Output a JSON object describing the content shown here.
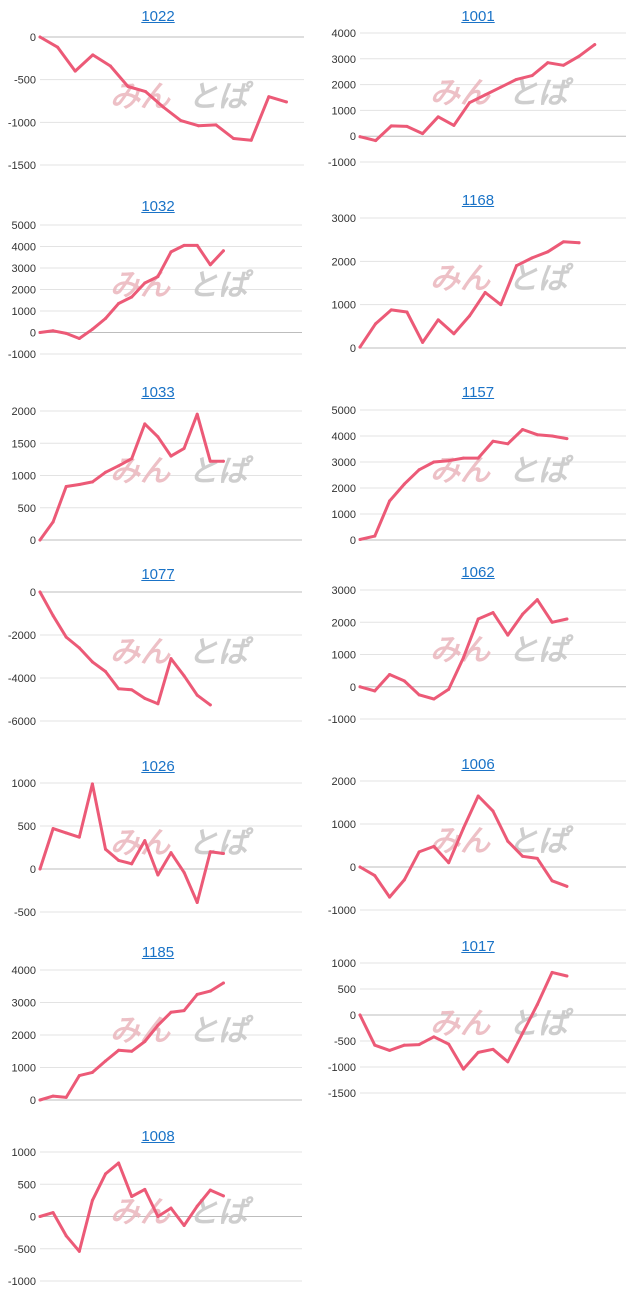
{
  "colors": {
    "line": "#ec5a77",
    "grid": "#e3e3e3",
    "title": "#1a73c7",
    "watermark_pink": "#eab6bd",
    "watermark_gray": "#c9c9c9"
  },
  "watermark": {
    "left": "みん",
    "right": "とぱ"
  },
  "chart_data": [
    {
      "type": "line",
      "title": "1022",
      "ylim": [
        -1500,
        0
      ],
      "yticks": [
        0,
        -500,
        -1000,
        -1500
      ],
      "x": [
        0,
        1,
        2,
        3,
        4,
        5,
        6,
        7,
        8,
        9,
        10,
        11,
        12,
        13,
        14,
        15
      ],
      "values": [
        0,
        -120,
        -400,
        -210,
        -340,
        -580,
        -640,
        -820,
        -980,
        -1040,
        -1030,
        -1190,
        -1210,
        -700,
        -760,
        null
      ]
    },
    {
      "type": "line",
      "title": "1001",
      "ylim": [
        -1000,
        4000
      ],
      "yticks": [
        4000,
        3000,
        2000,
        1000,
        0,
        -1000
      ],
      "x": [
        0,
        1,
        2,
        3,
        4,
        5,
        6,
        7,
        8,
        9,
        10,
        11,
        12,
        13,
        14,
        15,
        16,
        17
      ],
      "values": [
        -20,
        -170,
        400,
        380,
        100,
        750,
        420,
        1300,
        1600,
        1900,
        2200,
        2350,
        2850,
        2750,
        3100,
        3550,
        null,
        null
      ]
    },
    {
      "type": "line",
      "title": "1032",
      "ylim": [
        -1000,
        5000
      ],
      "yticks": [
        5000,
        4000,
        3000,
        2000,
        1000,
        0,
        -1000
      ],
      "x": [
        0,
        1,
        2,
        3,
        4,
        5,
        6,
        7,
        8,
        9,
        10,
        11,
        12,
        13,
        14,
        15,
        16,
        17,
        18,
        19,
        20
      ],
      "values": [
        0,
        80,
        -40,
        -280,
        150,
        650,
        1350,
        1650,
        2300,
        2600,
        3750,
        4050,
        4050,
        3150,
        3800,
        null,
        null,
        null,
        null,
        null,
        null
      ]
    },
    {
      "type": "line",
      "title": "1168",
      "ylim": [
        0,
        3000
      ],
      "yticks": [
        3000,
        2000,
        1000,
        0
      ],
      "x": [
        0,
        1,
        2,
        3,
        4,
        5,
        6,
        7,
        8,
        9,
        10,
        11,
        12,
        13,
        14,
        15,
        16,
        17
      ],
      "values": [
        20,
        560,
        880,
        830,
        130,
        650,
        330,
        740,
        1280,
        1000,
        1900,
        2080,
        2220,
        2450,
        2430,
        null,
        null,
        null
      ]
    },
    {
      "type": "line",
      "title": "1033",
      "ylim": [
        0,
        2000
      ],
      "yticks": [
        2000,
        1500,
        1000,
        500,
        0
      ],
      "x": [
        0,
        1,
        2,
        3,
        4,
        5,
        6,
        7,
        8,
        9,
        10,
        11,
        12,
        13,
        14,
        15,
        16,
        17,
        18,
        19,
        20
      ],
      "values": [
        0,
        280,
        830,
        860,
        900,
        1050,
        1150,
        1260,
        1800,
        1600,
        1300,
        1420,
        1950,
        1220,
        1220,
        null,
        null,
        null,
        null,
        null,
        null
      ]
    },
    {
      "type": "line",
      "title": "1157",
      "ylim": [
        0,
        5000
      ],
      "yticks": [
        5000,
        4000,
        3000,
        2000,
        1000,
        0
      ],
      "x": [
        0,
        1,
        2,
        3,
        4,
        5,
        6,
        7,
        8,
        9,
        10,
        11,
        12,
        13,
        14,
        15,
        16,
        17,
        18
      ],
      "values": [
        20,
        150,
        1500,
        2150,
        2700,
        3000,
        3050,
        3150,
        3150,
        3800,
        3700,
        4250,
        4050,
        4000,
        3900,
        null,
        null,
        null,
        null
      ]
    },
    {
      "type": "line",
      "title": "1077",
      "ylim": [
        -6000,
        0
      ],
      "yticks": [
        0,
        -2000,
        -4000,
        -6000
      ],
      "x": [
        0,
        1,
        2,
        3,
        4,
        5,
        6,
        7,
        8,
        9,
        10,
        11,
        12,
        13,
        14,
        15,
        16,
        17,
        18,
        19,
        20
      ],
      "values": [
        0,
        -1100,
        -2100,
        -2600,
        -3250,
        -3700,
        -4500,
        -4550,
        -4950,
        -5200,
        -3100,
        -3900,
        -4800,
        -5250,
        null,
        null,
        null,
        null,
        null,
        null,
        null
      ]
    },
    {
      "type": "line",
      "title": "1062",
      "ylim": [
        -1000,
        3000
      ],
      "yticks": [
        3000,
        2000,
        1000,
        0,
        -1000
      ],
      "x": [
        0,
        1,
        2,
        3,
        4,
        5,
        6,
        7,
        8,
        9,
        10,
        11,
        12,
        13,
        14,
        15,
        16,
        17,
        18
      ],
      "values": [
        0,
        -130,
        380,
        180,
        -250,
        -380,
        -80,
        900,
        2100,
        2300,
        1600,
        2250,
        2700,
        2000,
        2100,
        null,
        null,
        null,
        null
      ]
    },
    {
      "type": "line",
      "title": "1026",
      "ylim": [
        -500,
        1000
      ],
      "yticks": [
        1000,
        500,
        0,
        -500
      ],
      "x": [
        0,
        1,
        2,
        3,
        4,
        5,
        6,
        7,
        8,
        9,
        10,
        11,
        12,
        13,
        14,
        15,
        16,
        17,
        18,
        19,
        20
      ],
      "values": [
        0,
        470,
        420,
        370,
        990,
        230,
        100,
        60,
        330,
        -70,
        190,
        -40,
        -390,
        200,
        180,
        null,
        null,
        null,
        null,
        null,
        null
      ]
    },
    {
      "type": "line",
      "title": "1006",
      "ylim": [
        -1000,
        2000
      ],
      "yticks": [
        2000,
        1000,
        0,
        -1000
      ],
      "x": [
        0,
        1,
        2,
        3,
        4,
        5,
        6,
        7,
        8,
        9,
        10,
        11,
        12,
        13,
        14,
        15,
        16,
        17,
        18
      ],
      "values": [
        0,
        -200,
        -700,
        -300,
        350,
        480,
        100,
        900,
        1650,
        1300,
        600,
        250,
        200,
        -320,
        -450,
        null,
        null,
        null,
        null
      ]
    },
    {
      "type": "line",
      "title": "1185",
      "ylim": [
        0,
        4000
      ],
      "yticks": [
        4000,
        3000,
        2000,
        1000,
        0
      ],
      "x": [
        0,
        1,
        2,
        3,
        4,
        5,
        6,
        7,
        8,
        9,
        10,
        11,
        12,
        13,
        14,
        15,
        16,
        17,
        18,
        19,
        20
      ],
      "values": [
        0,
        120,
        80,
        750,
        850,
        1200,
        1530,
        1500,
        1800,
        2300,
        2700,
        2750,
        3250,
        3350,
        3600,
        null,
        null,
        null,
        null,
        null,
        null
      ]
    },
    {
      "type": "line",
      "title": "1017",
      "ylim": [
        -1500,
        1000
      ],
      "yticks": [
        1000,
        500,
        0,
        -500,
        -1000,
        -1500
      ],
      "x": [
        0,
        1,
        2,
        3,
        4,
        5,
        6,
        7,
        8,
        9,
        10,
        11,
        12,
        13,
        14,
        15,
        16,
        17,
        18
      ],
      "values": [
        0,
        -580,
        -680,
        -580,
        -570,
        -420,
        -560,
        -1040,
        -720,
        -660,
        -900,
        -350,
        200,
        820,
        750,
        null,
        null,
        null,
        null
      ]
    },
    {
      "type": "line",
      "title": "1008",
      "ylim": [
        -1000,
        1000
      ],
      "yticks": [
        1000,
        500,
        0,
        -500,
        -1000
      ],
      "x": [
        0,
        1,
        2,
        3,
        4,
        5,
        6,
        7,
        8,
        9,
        10,
        11,
        12,
        13,
        14,
        15,
        16,
        17,
        18,
        19,
        20
      ],
      "values": [
        0,
        60,
        -300,
        -540,
        250,
        660,
        830,
        310,
        420,
        0,
        130,
        -140,
        160,
        410,
        320,
        null,
        null,
        null,
        null,
        null,
        null
      ]
    }
  ]
}
